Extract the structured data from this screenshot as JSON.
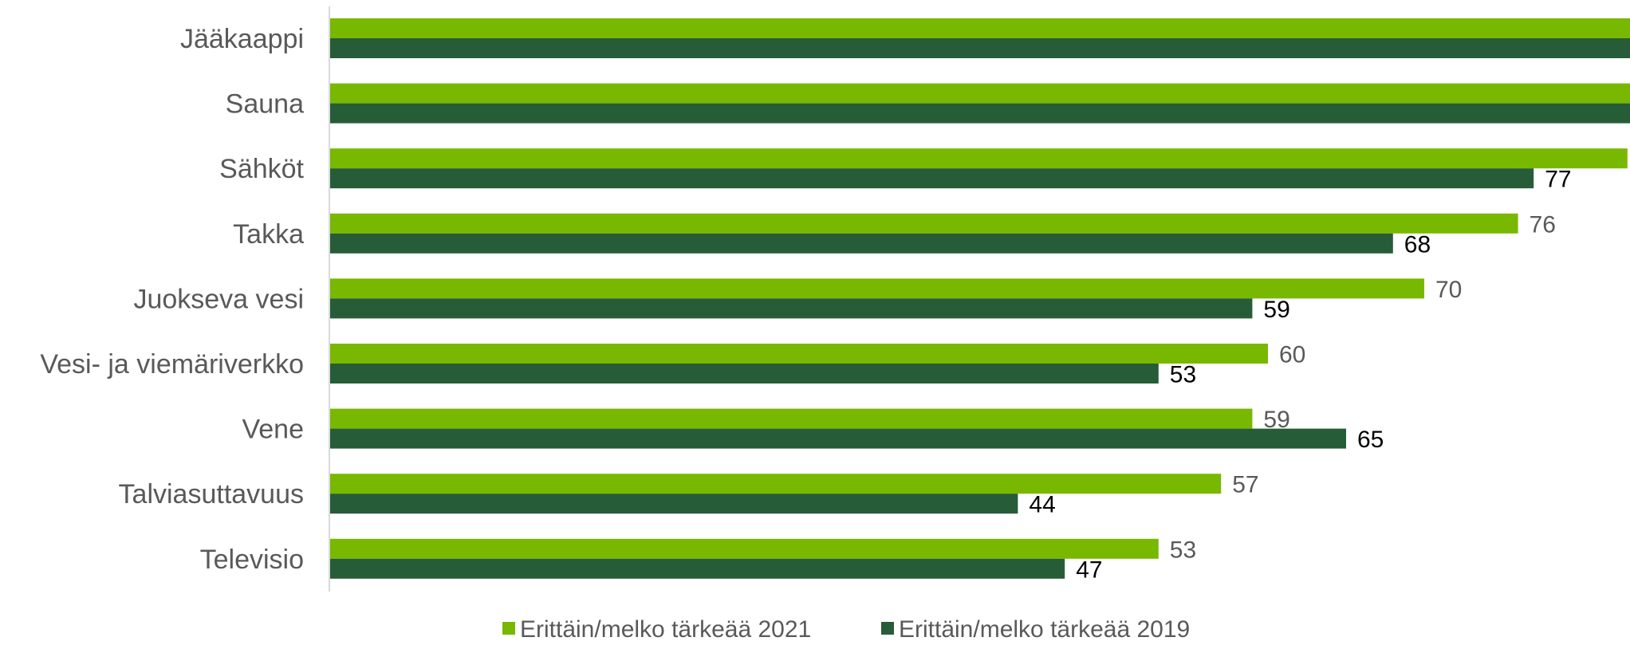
{
  "chart_data": {
    "type": "bar",
    "orientation": "horizontal",
    "categories": [
      "Jääkaappi",
      "Sauna",
      "Sähköt",
      "Takka",
      "Juokseva vesi",
      "Vesi- ja viemäriverkko",
      "Vene",
      "Talviasuttavuus",
      "Televisio"
    ],
    "series": [
      {
        "name": "Erittäin/melko tärkeää 2021",
        "values": [
          90,
          90,
          83,
          76,
          70,
          60,
          59,
          57,
          53
        ],
        "color": "#78b800"
      },
      {
        "name": "Erittäin/melko tärkeää 2019",
        "values": [
          87,
          88,
          77,
          68,
          59,
          53,
          65,
          44,
          47
        ],
        "color": "#265c37"
      }
    ],
    "xlim": [
      0,
      100
    ],
    "grid": false,
    "legend_position": "bottom",
    "data_labels": true
  }
}
